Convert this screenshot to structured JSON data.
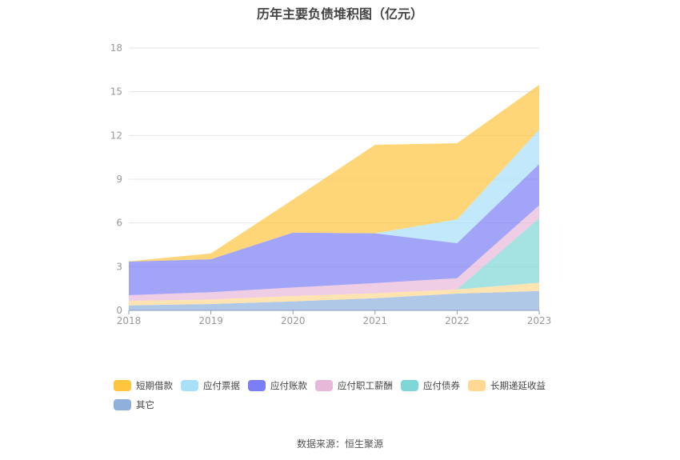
{
  "chart_data": {
    "type": "area",
    "stacked": true,
    "title": "历年主要负债堆积图（亿元）",
    "categories": [
      "2018",
      "2019",
      "2020",
      "2021",
      "2022",
      "2023"
    ],
    "ylim": [
      0,
      18
    ],
    "yticks": [
      0,
      3,
      6,
      9,
      12,
      15,
      18
    ],
    "grid": true,
    "legend_position": "bottom",
    "series": [
      {
        "name": "其它",
        "color": "#8fb0dd",
        "values": [
          0.34,
          0.44,
          0.62,
          0.84,
          1.15,
          1.33
        ]
      },
      {
        "name": "长期递延收益",
        "color": "#ffd991",
        "values": [
          0.32,
          0.31,
          0.37,
          0.33,
          0.29,
          0.57
        ]
      },
      {
        "name": "应付债券",
        "color": "#7fd6d6",
        "values": [
          0,
          0,
          0,
          0,
          0,
          4.43
        ]
      },
      {
        "name": "应付职工薪酬",
        "color": "#e8b8d8",
        "values": [
          0.38,
          0.5,
          0.58,
          0.7,
          0.77,
          0.88
        ]
      },
      {
        "name": "应付账款",
        "color": "#7b7ef5",
        "values": [
          2.31,
          2.26,
          3.77,
          3.42,
          2.4,
          2.83
        ]
      },
      {
        "name": "应付票据",
        "color": "#a8e0fa",
        "values": [
          0,
          0,
          0,
          0,
          1.63,
          2.36
        ]
      },
      {
        "name": "短期借款",
        "color": "#ffc53d",
        "values": [
          0.02,
          0.4,
          2.26,
          6.07,
          5.23,
          3.08
        ]
      }
    ],
    "legend_order": [
      "短期借款",
      "应付票据",
      "应付账款",
      "应付职工薪酬",
      "应付债券",
      "长期递延收益",
      "其它"
    ]
  },
  "source": "数据来源：恒生聚源"
}
